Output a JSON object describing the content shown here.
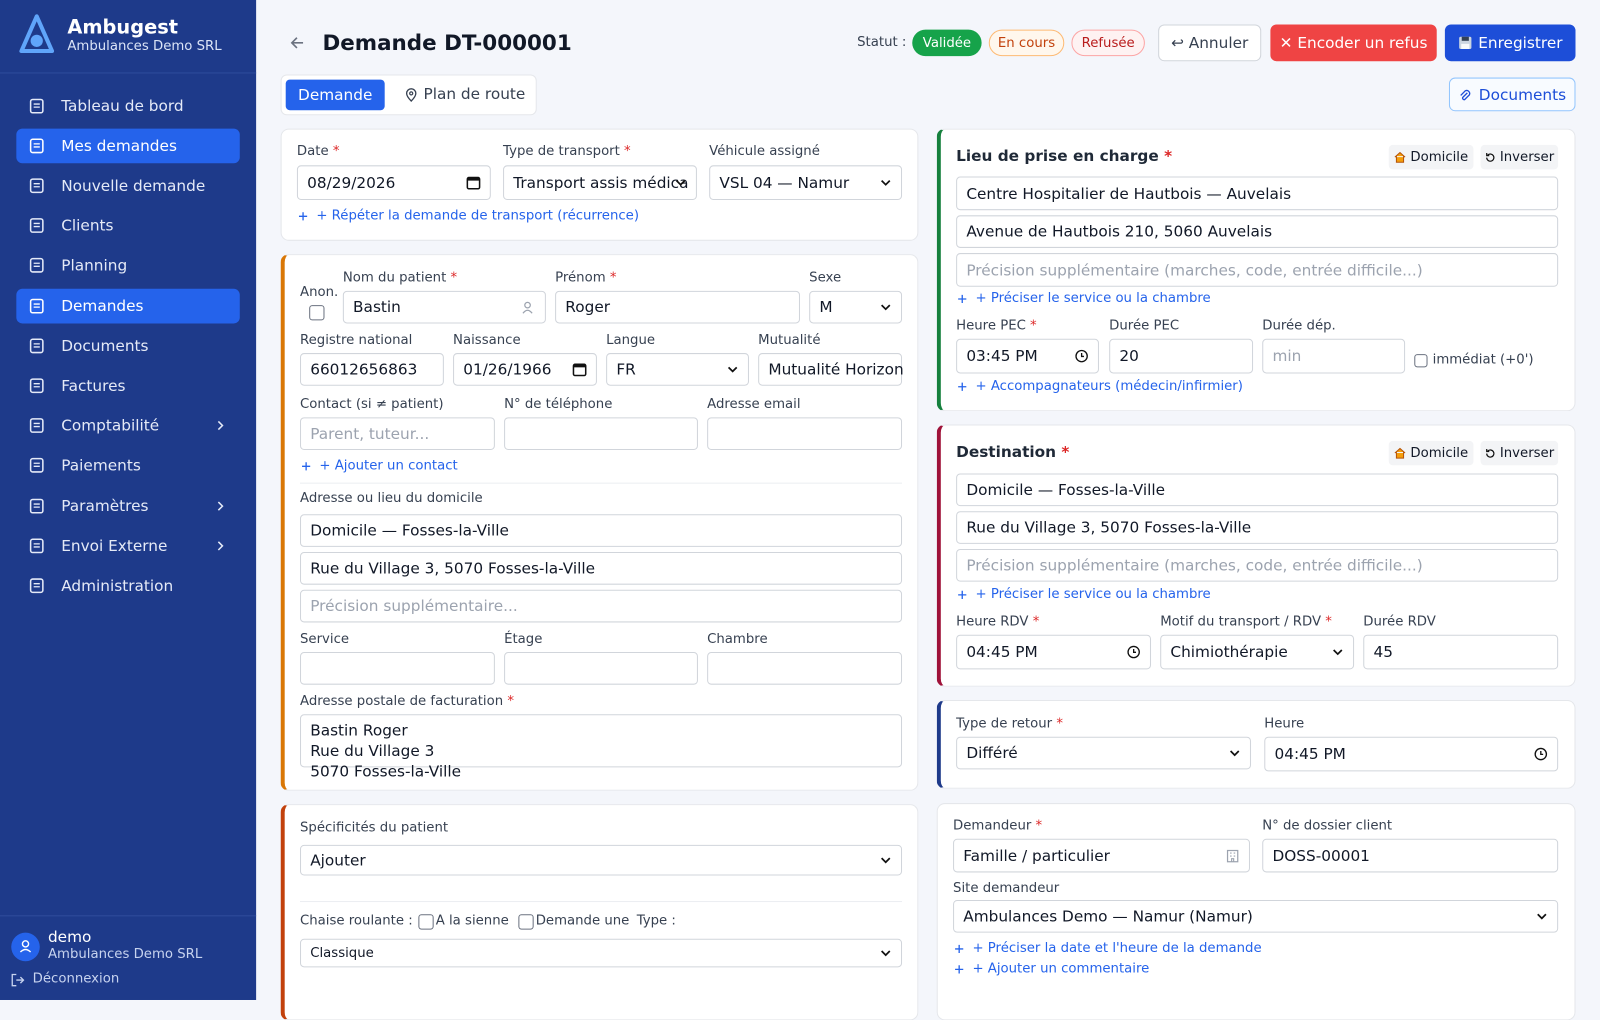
{
  "sidebar": {
    "brand": "Ambugest",
    "company": "Ambulances Demo SRL",
    "nav": [
      "Tableau de bord",
      "Mes demandes",
      "Nouvelle demande",
      "Clients",
      "Planning",
      "Demandes",
      "Documents",
      "Factures",
      "Comptabilité",
      "Paiements",
      "Paramètres",
      "Envoi Externe",
      "Administration"
    ],
    "user": "demo",
    "user_company": "Ambulances Demo SRL",
    "logout": "Déconnexion"
  },
  "header": {
    "title": "Demande DT-000001",
    "status_label": "Statut :",
    "statuses": [
      "Validée",
      "En cours",
      "Refusée"
    ],
    "cancel": "↩ Annuler",
    "refuse": "✕ Encoder un refus",
    "save": "Enregistrer"
  },
  "tabs": {
    "items": [
      "Demande",
      "Plan de route"
    ],
    "documents": "Documents"
  },
  "transport": {
    "date_label": "Date *",
    "date": "08/29/2026",
    "type_label": "Type de transport *",
    "type": "Transport assis médica",
    "vehicle_label": "Véhicule assigné",
    "vehicle": "VSL 04 — Namur",
    "recurrence_link": "+ Répéter la demande de transport (récurrence)"
  },
  "patient": {
    "anon_label": "Anon.",
    "name_label": "Nom du patient *",
    "name": "Bastin",
    "first_name_label": "Prénom *",
    "first_name": "Roger",
    "sex_label": "Sexe",
    "sex": "M",
    "national_register_label": "Registre national",
    "national_register": "66012656863",
    "birth_label": "Naissance",
    "birth": "01/26/1966",
    "language_label": "Langue",
    "language": "FR",
    "mutuality_label": "Mutualité",
    "mutuality": "Mutualité Horizon",
    "contact_label": "Contact (si ≠ patient)",
    "contact_placeholder": "Parent, tuteur...",
    "phone_label": "N° de téléphone",
    "email_label": "Adresse email",
    "add_contact_link": "+ Ajouter un contact",
    "address_label": "Adresse ou lieu du domicile",
    "address_place": "Domicile — Fosses-la-Ville",
    "address_street": "Rue du Village 3, 5070 Fosses-la-Ville",
    "address_extra_placeholder": "Précision supplémentaire...",
    "service_label": "Service",
    "floor_label": "Étage",
    "room_label": "Chambre",
    "billing_label": "Adresse postale de facturation *",
    "billing_lines": [
      "Bastin Roger",
      "Rue du Village 3",
      "5070 Fosses-la-Ville"
    ]
  },
  "specifics": {
    "label": "Spécificités du patient",
    "select": "Ajouter",
    "wheelchair_label": "Chaise roulante :",
    "own": "A la sienne",
    "request": "Demande une",
    "type_label": "Type :",
    "type": "Classique"
  },
  "pickup": {
    "title": "Lieu de prise en charge *",
    "home_btn": "Domicile",
    "swap_btn": "Inverser",
    "place": "Centre Hospitalier de Hautbois — Auvelais",
    "street": "Avenue de Hautbois 210, 5060 Auvelais",
    "extra_placeholder": "Précision supplémentaire (marches, code, entrée difficile...)",
    "service_link": "+ Préciser le service ou la chambre",
    "time_label": "Heure PEC *",
    "time": "03:45 PM",
    "duration_label": "Durée PEC",
    "duration": "20",
    "departure_label": "Durée dép.",
    "departure_placeholder": "min",
    "immediate": "immédiat (+0')",
    "companions_link": "+ Accompagnateurs (médecin/infirmier)"
  },
  "destination": {
    "title": "Destination *",
    "home_btn": "Domicile",
    "swap_btn": "Inverser",
    "place": "Domicile — Fosses-la-Ville",
    "street": "Rue du Village 3, 5070 Fosses-la-Ville",
    "extra_placeholder": "Précision supplémentaire (marches, code, entrée difficile...)",
    "service_link": "+ Préciser le service ou la chambre",
    "time_label": "Heure RDV *",
    "time": "04:45 PM",
    "reason_label": "Motif du transport / RDV *",
    "reason": "Chimiothérapie",
    "duration_label": "Durée RDV",
    "duration": "45"
  },
  "return": {
    "type_label": "Type de retour *",
    "type": "Différé",
    "time_label": "Heure",
    "time": "04:45 PM"
  },
  "requester": {
    "label": "Demandeur *",
    "value": "Famille / particulier",
    "file_label": "N° de dossier client",
    "file": "DOSS-00001",
    "site_label": "Site demandeur",
    "site": "Ambulances Demo — Namur (Namur)",
    "date_link": "+ Préciser la date et l'heure de la demande",
    "comment_link": "+ Ajouter un commentaire"
  }
}
